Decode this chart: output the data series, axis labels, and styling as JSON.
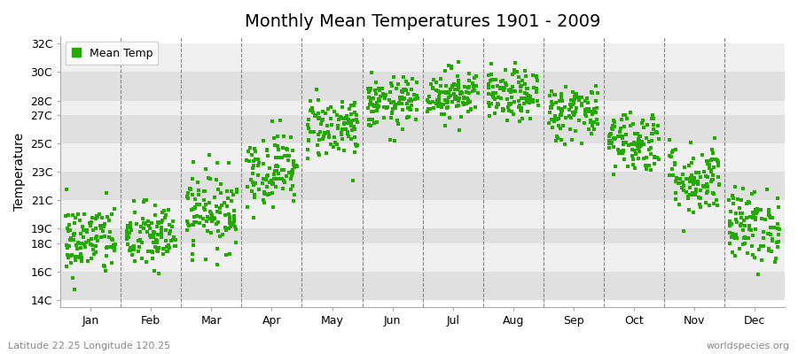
{
  "title": "Monthly Mean Temperatures 1901 - 2009",
  "ylabel": "Temperature",
  "footer_left": "Latitude 22.25 Longitude 120.25",
  "footer_right": "worldspecies.org",
  "legend_label": "Mean Temp",
  "dot_color": "#22aa00",
  "background_color": "#ffffff",
  "band_color_white": "#f0f0f0",
  "band_color_gray": "#e0e0e0",
  "ytick_labels": [
    "14C",
    "16C",
    "18C",
    "19C",
    "21C",
    "23C",
    "25C",
    "27C",
    "28C",
    "30C",
    "32C"
  ],
  "ytick_values": [
    14,
    16,
    18,
    19,
    21,
    23,
    25,
    27,
    28,
    30,
    32
  ],
  "ylim": [
    13.5,
    32.5
  ],
  "months": [
    "Jan",
    "Feb",
    "Mar",
    "Apr",
    "May",
    "Jun",
    "Jul",
    "Aug",
    "Sep",
    "Oct",
    "Nov",
    "Dec"
  ],
  "monthly_means": [
    18.2,
    18.4,
    20.3,
    23.2,
    26.2,
    27.8,
    28.5,
    28.3,
    27.2,
    25.2,
    22.5,
    19.2
  ],
  "monthly_stds": [
    1.3,
    1.2,
    1.4,
    1.3,
    1.1,
    0.9,
    0.9,
    0.9,
    1.0,
    1.1,
    1.3,
    1.3
  ],
  "n_years": 109,
  "title_fontsize": 14,
  "label_fontsize": 10,
  "tick_fontsize": 9,
  "footer_fontsize": 8
}
